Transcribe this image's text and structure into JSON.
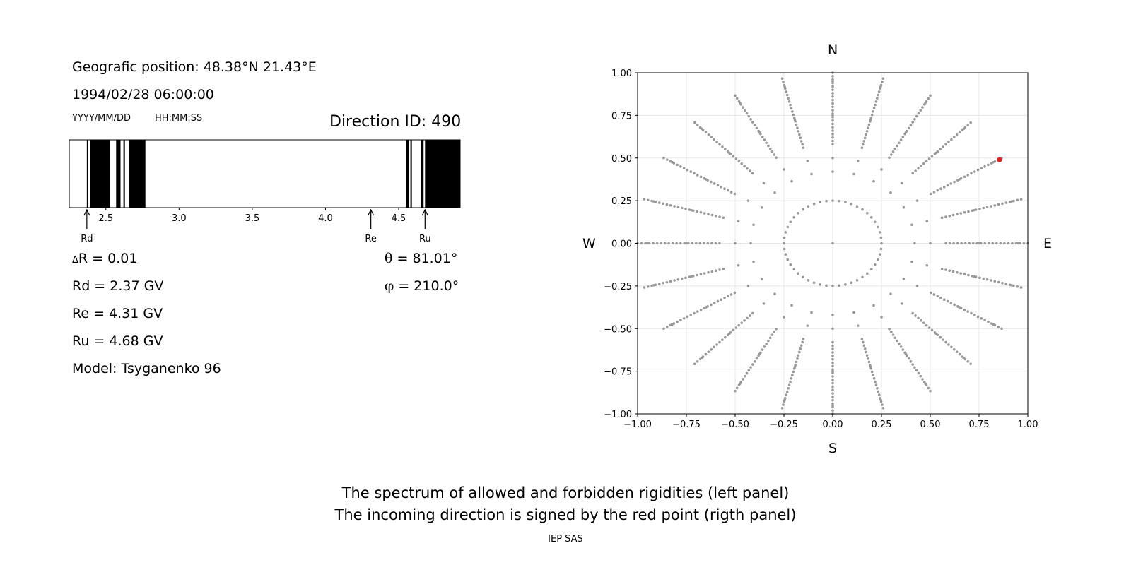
{
  "left_panel": {
    "position_text": "Geografic position: 48.38°N 21.43°E",
    "datetime_text": "1994/02/28 06:00:00",
    "date_format_label": "YYYY/MM/DD",
    "time_format_label": "HH:MM:SS",
    "direction_id_text": "Direction ID: 490",
    "delta_r_symbol": "Δ",
    "delta_r_text": "R = 0.01",
    "rd_text": "Rd = 2.37 GV",
    "re_text": "Re = 4.31 GV",
    "ru_text": "Ru = 4.68 GV",
    "model_text": "Model: Tsyganenko 96",
    "theta_symbol": "θ",
    "theta_text": " = 81.01°",
    "phi_symbol": "φ",
    "phi_text": " = 210.0°"
  },
  "right_panel": {
    "north_label": "N",
    "south_label": "S",
    "west_label": "W",
    "east_label": "E"
  },
  "footer": {
    "caption_line1": "The spectrum of allowed and forbidden rigidities (left panel)",
    "caption_line2": "The incoming direction is signed by the red point (rigth panel)",
    "credit": "IEP SAS"
  },
  "chart_data": [
    {
      "type": "spectrum",
      "title": "",
      "xlim": [
        2.25,
        4.92
      ],
      "xticks": [
        "2.5",
        "3.0",
        "3.5",
        "4.0",
        "4.5"
      ],
      "tick_values": [
        2.5,
        3.0,
        3.5,
        4.0,
        4.5
      ],
      "forbidden_intervals": [
        [
          2.37,
          2.38
        ],
        [
          2.39,
          2.53
        ],
        [
          2.57,
          2.6
        ],
        [
          2.62,
          2.63
        ],
        [
          2.66,
          2.77
        ],
        [
          4.55,
          4.57
        ],
        [
          4.58,
          4.59
        ],
        [
          4.65,
          4.67
        ],
        [
          4.68,
          4.92
        ]
      ],
      "markers": [
        {
          "label": "Rd",
          "value": 2.37
        },
        {
          "label": "Re",
          "value": 4.31
        },
        {
          "label": "Ru",
          "value": 4.68
        }
      ],
      "colors": {
        "forbidden": "#000000",
        "allowed": "#ffffff"
      }
    },
    {
      "type": "scatter",
      "title": "",
      "xlim": [
        -1.0,
        1.0
      ],
      "ylim": [
        -1.0,
        1.0
      ],
      "xticks": [
        "−1.00",
        "−0.75",
        "−0.50",
        "−0.25",
        "0.00",
        "0.25",
        "0.50",
        "0.75",
        "1.00"
      ],
      "yticks": [
        "1.00",
        "0.75",
        "0.50",
        "0.25",
        "0.00",
        "−0.25",
        "−0.50",
        "−0.75",
        "−1.00"
      ],
      "tick_values_x": [
        -1.0,
        -0.75,
        -0.5,
        -0.25,
        0.0,
        0.25,
        0.5,
        0.75,
        1.0
      ],
      "tick_values_y": [
        1.0,
        0.75,
        0.5,
        0.25,
        0.0,
        -0.25,
        -0.5,
        -0.75,
        -1.0
      ],
      "grid": true,
      "grid_directions": {
        "azimuth_step_deg": 15,
        "ring_radii": [
          0.25,
          0.42,
          0.5,
          0.58,
          0.64,
          0.7,
          0.75,
          0.8,
          0.84,
          0.88,
          0.92,
          0.95,
          0.98,
          1.0
        ],
        "dense_radii_from": 0.6,
        "dense_step": 0.02,
        "color": "#999999"
      },
      "highlighted_point": {
        "x": 0.855,
        "y": 0.49,
        "color": "#e8201f"
      }
    }
  ]
}
